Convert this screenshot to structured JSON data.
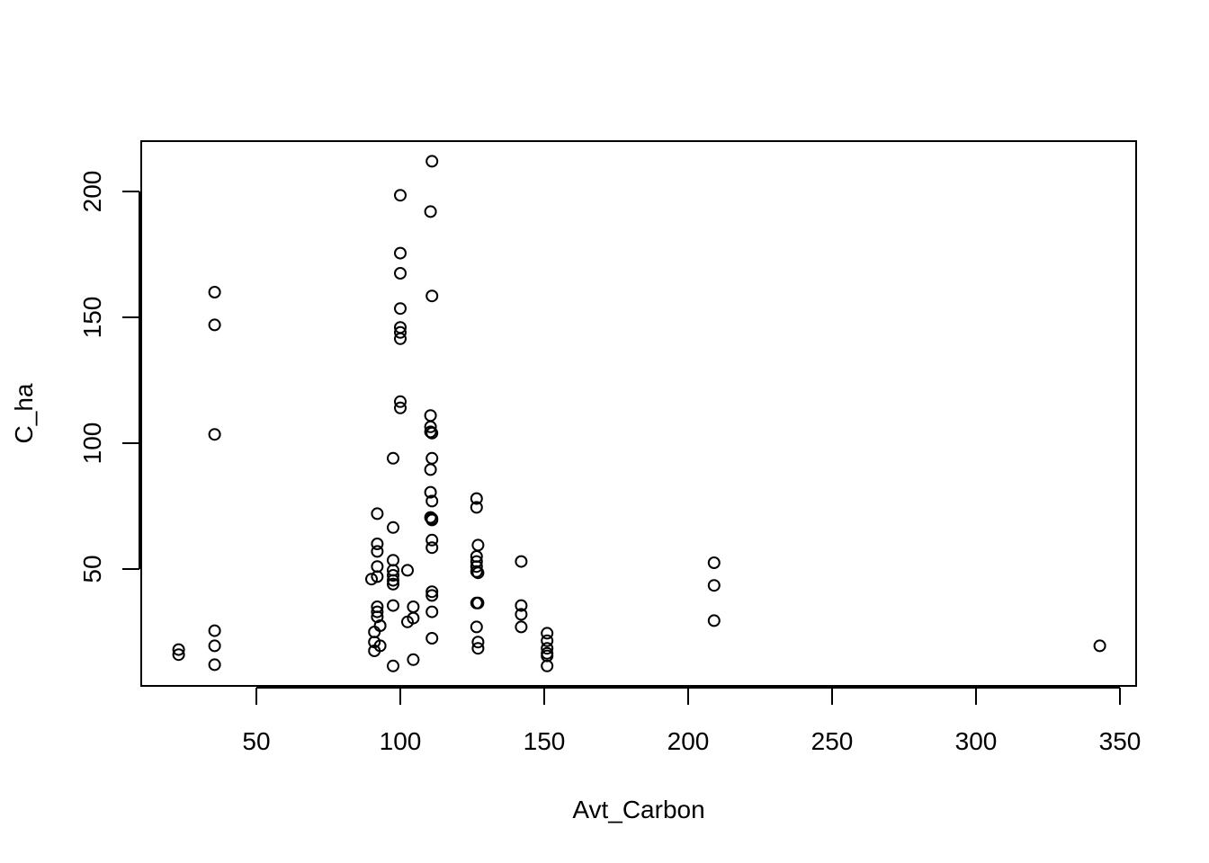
{
  "chart_data": {
    "type": "scatter",
    "title": "",
    "xlabel": "Avt_Carbon",
    "ylabel": "C_ha",
    "xlim": [
      10,
      355
    ],
    "ylim": [
      0,
      220
    ],
    "xticks": [
      50,
      100,
      150,
      200,
      250,
      300,
      350
    ],
    "yticks": [
      50,
      100,
      150,
      200
    ],
    "grid": false,
    "legend": "none",
    "points": [
      [
        23,
        18
      ],
      [
        23,
        16
      ],
      [
        35.5,
        160
      ],
      [
        35.5,
        147
      ],
      [
        35.5,
        103.5
      ],
      [
        35.5,
        25.5
      ],
      [
        35.5,
        19.5
      ],
      [
        35.5,
        12
      ],
      [
        90,
        46
      ],
      [
        91,
        25
      ],
      [
        91,
        21
      ],
      [
        91,
        17.5
      ],
      [
        92,
        72
      ],
      [
        92,
        60
      ],
      [
        92,
        57
      ],
      [
        92,
        51
      ],
      [
        92,
        47
      ],
      [
        92,
        35
      ],
      [
        92,
        33
      ],
      [
        92,
        31
      ],
      [
        93,
        27.5
      ],
      [
        93,
        19.5
      ],
      [
        97.5,
        94
      ],
      [
        97.5,
        66.5
      ],
      [
        97.5,
        53.5
      ],
      [
        97.5,
        49.5
      ],
      [
        97.5,
        47.5
      ],
      [
        97.5,
        45.5
      ],
      [
        97.5,
        44
      ],
      [
        97.5,
        35.5
      ],
      [
        97.5,
        11.5
      ],
      [
        100,
        198.5
      ],
      [
        100,
        175.5
      ],
      [
        100,
        167.5
      ],
      [
        100,
        153.5
      ],
      [
        100,
        146
      ],
      [
        100,
        144
      ],
      [
        100,
        141.5
      ],
      [
        100,
        116.5
      ],
      [
        100,
        114
      ],
      [
        102.5,
        49.5
      ],
      [
        102.5,
        29
      ],
      [
        104.5,
        35
      ],
      [
        104.5,
        30.5
      ],
      [
        104.5,
        14
      ],
      [
        111,
        212
      ],
      [
        110.5,
        192
      ],
      [
        111,
        158.5
      ],
      [
        110.5,
        111
      ],
      [
        110.5,
        106.5
      ],
      [
        110.5,
        104.5
      ],
      [
        111,
        104
      ],
      [
        111,
        94
      ],
      [
        110.5,
        89.5
      ],
      [
        110.5,
        80.5
      ],
      [
        111,
        77
      ],
      [
        110.5,
        70.5
      ],
      [
        111,
        70
      ],
      [
        111,
        69.5
      ],
      [
        111,
        61.5
      ],
      [
        111,
        58.5
      ],
      [
        111,
        41
      ],
      [
        111,
        39.5
      ],
      [
        111,
        33
      ],
      [
        111,
        22.5
      ],
      [
        126.5,
        78
      ],
      [
        126.5,
        74.5
      ],
      [
        127,
        59.5
      ],
      [
        126.5,
        55
      ],
      [
        126.5,
        53
      ],
      [
        126.5,
        51
      ],
      [
        126.5,
        49
      ],
      [
        127,
        48.5
      ],
      [
        126.5,
        36.5
      ],
      [
        127,
        36.5
      ],
      [
        126.5,
        27
      ],
      [
        127,
        21
      ],
      [
        127,
        18.5
      ],
      [
        142,
        53
      ],
      [
        142,
        35.5
      ],
      [
        142,
        32
      ],
      [
        142,
        27
      ],
      [
        151,
        24.5
      ],
      [
        151,
        21.5
      ],
      [
        151,
        18.5
      ],
      [
        151,
        16.5
      ],
      [
        151,
        15.5
      ],
      [
        151,
        11.5
      ],
      [
        209,
        52.5
      ],
      [
        209,
        43.5
      ],
      [
        209,
        29.5
      ],
      [
        343,
        19.5
      ]
    ]
  }
}
